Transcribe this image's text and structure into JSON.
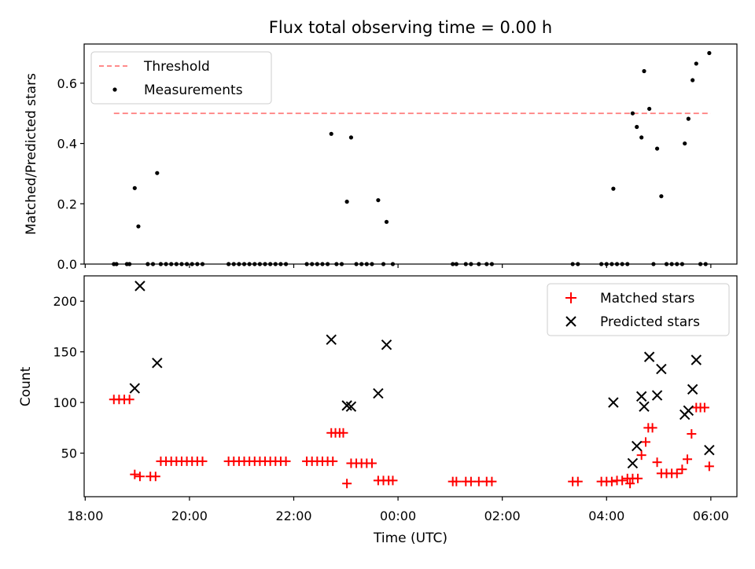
{
  "title": "Flux total observing time = 0.00 h",
  "chart_data": [
    {
      "type": "scatter",
      "ylabel": "Matched/Predicted stars",
      "ylim": [
        0,
        0.73
      ],
      "xlim": [
        17.98,
        30.5
      ],
      "yticks": [
        0.0,
        0.2,
        0.4,
        0.6
      ],
      "ytick_labels": [
        "0.0",
        "0.2",
        "0.4",
        "0.6"
      ],
      "legend_position": "upper-left",
      "threshold": {
        "name": "Threshold",
        "value": 0.5,
        "x_start": 18.55,
        "x_end": 30.0,
        "color": "#ff7b7b"
      },
      "series": [
        {
          "name": "Measurements",
          "color": "#000000",
          "points": [
            [
              18.55,
              0
            ],
            [
              18.6,
              0
            ],
            [
              18.8,
              0
            ],
            [
              18.85,
              0
            ],
            [
              18.95,
              0.252
            ],
            [
              19.02,
              0.125
            ],
            [
              19.2,
              0
            ],
            [
              19.3,
              0
            ],
            [
              19.38,
              0.302
            ],
            [
              19.45,
              0
            ],
            [
              19.55,
              0
            ],
            [
              19.65,
              0
            ],
            [
              19.75,
              0
            ],
            [
              19.85,
              0
            ],
            [
              19.95,
              0
            ],
            [
              20.05,
              0
            ],
            [
              20.15,
              0
            ],
            [
              20.25,
              0
            ],
            [
              20.75,
              0
            ],
            [
              20.85,
              0
            ],
            [
              20.95,
              0
            ],
            [
              21.05,
              0
            ],
            [
              21.15,
              0
            ],
            [
              21.25,
              0
            ],
            [
              21.35,
              0
            ],
            [
              21.45,
              0
            ],
            [
              21.55,
              0
            ],
            [
              21.65,
              0
            ],
            [
              21.75,
              0
            ],
            [
              21.85,
              0
            ],
            [
              22.25,
              0
            ],
            [
              22.35,
              0
            ],
            [
              22.45,
              0
            ],
            [
              22.55,
              0
            ],
            [
              22.65,
              0
            ],
            [
              22.72,
              0.432
            ],
            [
              22.82,
              0
            ],
            [
              22.92,
              0
            ],
            [
              23.02,
              0.207
            ],
            [
              23.1,
              0.42
            ],
            [
              23.2,
              0
            ],
            [
              23.3,
              0
            ],
            [
              23.4,
              0
            ],
            [
              23.5,
              0
            ],
            [
              23.62,
              0.212
            ],
            [
              23.72,
              0
            ],
            [
              23.78,
              0.14
            ],
            [
              23.9,
              0
            ],
            [
              25.05,
              0
            ],
            [
              25.12,
              0
            ],
            [
              25.3,
              0
            ],
            [
              25.4,
              0
            ],
            [
              25.55,
              0
            ],
            [
              25.7,
              0
            ],
            [
              25.8,
              0
            ],
            [
              27.35,
              0
            ],
            [
              27.45,
              0
            ],
            [
              27.9,
              0
            ],
            [
              28.0,
              0
            ],
            [
              28.1,
              0
            ],
            [
              28.13,
              0.25
            ],
            [
              28.2,
              0
            ],
            [
              28.3,
              0
            ],
            [
              28.4,
              0
            ],
            [
              28.5,
              0.5
            ],
            [
              28.58,
              0.455
            ],
            [
              28.67,
              0.42
            ],
            [
              28.72,
              0.64
            ],
            [
              28.82,
              0.515
            ],
            [
              28.9,
              0
            ],
            [
              28.97,
              0.383
            ],
            [
              29.05,
              0.225
            ],
            [
              29.15,
              0
            ],
            [
              29.25,
              0
            ],
            [
              29.35,
              0
            ],
            [
              29.45,
              0
            ],
            [
              29.5,
              0.4
            ],
            [
              29.57,
              0.482
            ],
            [
              29.65,
              0.61
            ],
            [
              29.72,
              0.665
            ],
            [
              29.8,
              0
            ],
            [
              29.9,
              0
            ],
            [
              29.97,
              0.7
            ]
          ]
        }
      ]
    },
    {
      "type": "scatter",
      "xlabel": "Time (UTC)",
      "ylabel": "Count",
      "ylim": [
        7,
        225
      ],
      "xlim": [
        17.98,
        30.5
      ],
      "yticks": [
        50,
        100,
        150,
        200
      ],
      "ytick_labels": [
        "50",
        "100",
        "150",
        "200"
      ],
      "xticks": [
        18,
        20,
        22,
        24,
        26,
        28,
        30
      ],
      "xtick_labels": [
        "18:00",
        "20:00",
        "22:00",
        "00:00",
        "02:00",
        "04:00",
        "06:00"
      ],
      "legend_position": "upper-right",
      "series": [
        {
          "name": "Matched stars",
          "marker": "plus",
          "color": "#ff0000",
          "points": [
            [
              18.55,
              103
            ],
            [
              18.65,
              103
            ],
            [
              18.75,
              103
            ],
            [
              18.85,
              103
            ],
            [
              18.95,
              29
            ],
            [
              19.05,
              27
            ],
            [
              19.25,
              27
            ],
            [
              19.35,
              27
            ],
            [
              19.45,
              42
            ],
            [
              19.55,
              42
            ],
            [
              19.65,
              42
            ],
            [
              19.75,
              42
            ],
            [
              19.85,
              42
            ],
            [
              19.95,
              42
            ],
            [
              20.05,
              42
            ],
            [
              20.15,
              42
            ],
            [
              20.25,
              42
            ],
            [
              20.75,
              42
            ],
            [
              20.85,
              42
            ],
            [
              20.95,
              42
            ],
            [
              21.05,
              42
            ],
            [
              21.15,
              42
            ],
            [
              21.25,
              42
            ],
            [
              21.35,
              42
            ],
            [
              21.45,
              42
            ],
            [
              21.55,
              42
            ],
            [
              21.65,
              42
            ],
            [
              21.75,
              42
            ],
            [
              21.85,
              42
            ],
            [
              22.25,
              42
            ],
            [
              22.35,
              42
            ],
            [
              22.45,
              42
            ],
            [
              22.55,
              42
            ],
            [
              22.65,
              42
            ],
            [
              22.75,
              42
            ],
            [
              22.72,
              70
            ],
            [
              22.8,
              70
            ],
            [
              22.88,
              70
            ],
            [
              22.95,
              70
            ],
            [
              23.02,
              20
            ],
            [
              23.1,
              40
            ],
            [
              23.2,
              40
            ],
            [
              23.3,
              40
            ],
            [
              23.4,
              40
            ],
            [
              23.5,
              40
            ],
            [
              23.62,
              23
            ],
            [
              23.72,
              23
            ],
            [
              23.82,
              23
            ],
            [
              23.9,
              23
            ],
            [
              25.05,
              22
            ],
            [
              25.12,
              22
            ],
            [
              25.3,
              22
            ],
            [
              25.4,
              22
            ],
            [
              25.55,
              22
            ],
            [
              25.7,
              22
            ],
            [
              25.8,
              22
            ],
            [
              27.35,
              22
            ],
            [
              27.45,
              22
            ],
            [
              27.9,
              22
            ],
            [
              28.0,
              22
            ],
            [
              28.1,
              22
            ],
            [
              28.2,
              23
            ],
            [
              28.3,
              23
            ],
            [
              28.4,
              25
            ],
            [
              28.45,
              20
            ],
            [
              28.5,
              25
            ],
            [
              28.6,
              25
            ],
            [
              28.67,
              48
            ],
            [
              28.75,
              61
            ],
            [
              28.8,
              75
            ],
            [
              28.88,
              75
            ],
            [
              28.97,
              41
            ],
            [
              29.05,
              30
            ],
            [
              29.15,
              30
            ],
            [
              29.25,
              30
            ],
            [
              29.35,
              30
            ],
            [
              29.45,
              34
            ],
            [
              29.55,
              44
            ],
            [
              29.63,
              69
            ],
            [
              29.72,
              95
            ],
            [
              29.8,
              95
            ],
            [
              29.88,
              95
            ],
            [
              29.97,
              37
            ]
          ]
        },
        {
          "name": "Predicted stars",
          "marker": "x",
          "color": "#000000",
          "points": [
            [
              18.95,
              114
            ],
            [
              19.05,
              215
            ],
            [
              19.38,
              139
            ],
            [
              22.72,
              162
            ],
            [
              23.02,
              97
            ],
            [
              23.1,
              96
            ],
            [
              23.62,
              109
            ],
            [
              23.78,
              157
            ],
            [
              28.13,
              100
            ],
            [
              28.5,
              40
            ],
            [
              28.58,
              57
            ],
            [
              28.67,
              106
            ],
            [
              28.72,
              96
            ],
            [
              28.82,
              145
            ],
            [
              28.97,
              107
            ],
            [
              29.05,
              133
            ],
            [
              29.5,
              88
            ],
            [
              29.57,
              92
            ],
            [
              29.65,
              113
            ],
            [
              29.72,
              142
            ],
            [
              29.97,
              53
            ]
          ]
        }
      ]
    }
  ]
}
